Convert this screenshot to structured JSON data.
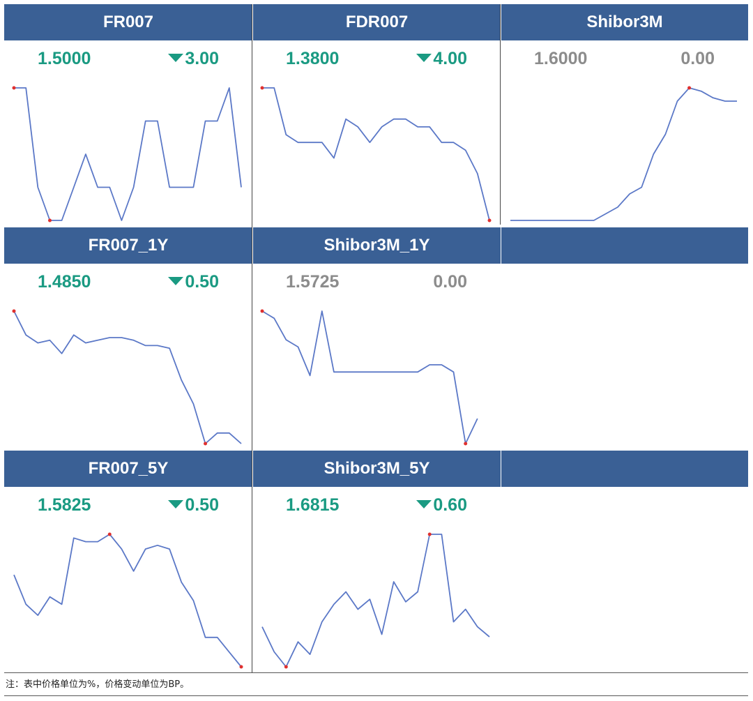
{
  "colors": {
    "header_bg": "#3a6095",
    "down": "#1a9a82",
    "flat": "#8c8c8c",
    "line": "#5b78c7",
    "marker": "#e0302e"
  },
  "chart_data": [
    {
      "type": "line",
      "title": "FR007",
      "value": "1.5000",
      "change": "3.00",
      "direction": "down",
      "y": [
        1.53,
        1.53,
        1.5,
        1.49,
        1.49,
        1.5,
        1.51,
        1.5,
        1.5,
        1.49,
        1.5,
        1.52,
        1.52,
        1.5,
        1.5,
        1.5,
        1.52,
        1.52,
        1.53,
        1.5
      ],
      "markers": [
        0,
        3
      ]
    },
    {
      "type": "line",
      "title": "FDR007",
      "value": "1.3800",
      "change": "4.00",
      "direction": "down",
      "y": [
        1.57,
        1.57,
        1.51,
        1.5,
        1.5,
        1.5,
        1.48,
        1.53,
        1.52,
        1.5,
        1.52,
        1.53,
        1.53,
        1.52,
        1.52,
        1.5,
        1.5,
        1.49,
        1.46,
        1.4
      ],
      "markers": [
        0,
        19
      ]
    },
    {
      "type": "line",
      "title": "Shibor3M",
      "value": "1.6000",
      "change": "0.00",
      "direction": "flat",
      "y": [
        1.587,
        1.587,
        1.587,
        1.587,
        1.587,
        1.587,
        1.587,
        1.587,
        1.588,
        1.589,
        1.591,
        1.592,
        1.597,
        1.6,
        1.605,
        1.607,
        1.6065,
        1.6055,
        1.605,
        1.605
      ],
      "markers": [
        15
      ]
    },
    {
      "type": "line",
      "title": "FR007_1Y",
      "value": "1.4850",
      "change": "0.50",
      "direction": "down",
      "y": [
        1.54,
        1.531,
        1.528,
        1.529,
        1.524,
        1.531,
        1.528,
        1.529,
        1.53,
        1.53,
        1.529,
        1.527,
        1.527,
        1.526,
        1.514,
        1.505,
        1.49,
        1.494,
        1.494,
        1.49
      ],
      "markers": [
        0,
        16
      ]
    },
    {
      "type": "line",
      "title": "Shibor3M_1Y",
      "value": "1.5725",
      "change": "0.00",
      "direction": "flat",
      "y": [
        1.615,
        1.613,
        1.607,
        1.605,
        1.597,
        1.615,
        1.598,
        1.598,
        1.598,
        1.598,
        1.598,
        1.598,
        1.598,
        1.598,
        1.6,
        1.6,
        1.598,
        1.578,
        1.585
      ],
      "markers": [
        0,
        17
      ]
    },
    {
      "type": "line",
      "title": "FR007_5Y",
      "value": "1.5825",
      "change": "0.50",
      "direction": "down",
      "y": [
        1.61,
        1.602,
        1.599,
        1.604,
        1.602,
        1.62,
        1.619,
        1.619,
        1.621,
        1.617,
        1.611,
        1.617,
        1.618,
        1.617,
        1.608,
        1.603,
        1.593,
        1.593,
        1.589,
        1.585
      ],
      "markers": [
        8,
        19
      ]
    },
    {
      "type": "line",
      "title": "Shibor3M_5Y",
      "value": "1.6815",
      "change": "0.60",
      "direction": "down",
      "y": [
        1.706,
        1.696,
        1.69,
        1.7,
        1.695,
        1.708,
        1.715,
        1.72,
        1.713,
        1.717,
        1.703,
        1.724,
        1.716,
        1.72,
        1.743,
        1.743,
        1.708,
        1.713,
        1.706,
        1.702
      ],
      "markers": [
        2,
        14
      ]
    }
  ],
  "footer": {
    "note": "注：表中价格单位为%，价格变动单位为BP。"
  }
}
